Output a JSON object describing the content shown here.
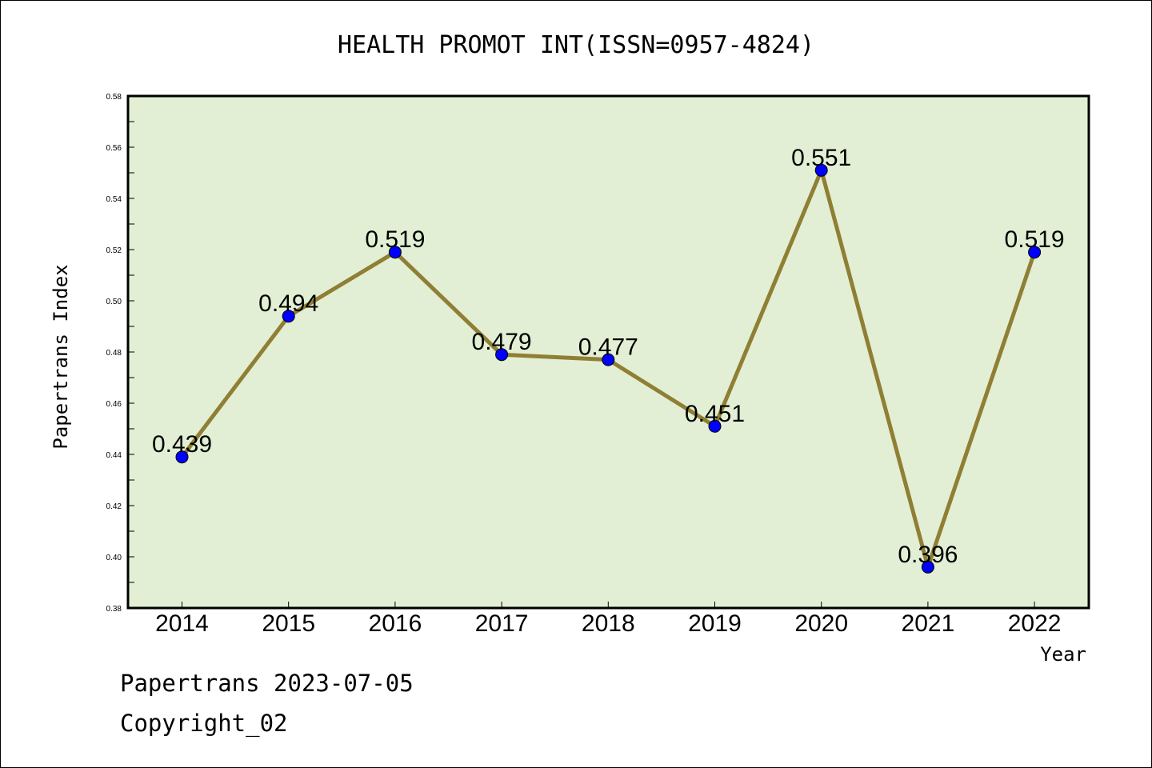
{
  "chart_data": {
    "type": "line",
    "title": "HEALTH PROMOT INT(ISSN=0957-4824)",
    "xlabel": "Year",
    "ylabel": "Papertrans Index",
    "categories": [
      "2014",
      "2015",
      "2016",
      "2017",
      "2018",
      "2019",
      "2020",
      "2021",
      "2022"
    ],
    "values": [
      0.439,
      0.494,
      0.519,
      0.479,
      0.477,
      0.451,
      0.551,
      0.396,
      0.519
    ],
    "data_labels": [
      "0.439",
      "0.494",
      "0.519",
      "0.479",
      "0.477",
      "0.451",
      "0.551",
      "0.396",
      "0.519"
    ],
    "ylim": [
      0.38,
      0.58
    ],
    "yticks": [
      "0.38",
      "0.40",
      "0.42",
      "0.44",
      "0.46",
      "0.48",
      "0.50",
      "0.52",
      "0.54",
      "0.56",
      "0.58"
    ],
    "grid": false,
    "colors": {
      "plot_background": "#e2efd4",
      "line": "#8f7f34",
      "marker": "#0000ff"
    }
  },
  "footer": {
    "line1": "Papertrans 2023-07-05",
    "line2": "Copyright_02"
  }
}
